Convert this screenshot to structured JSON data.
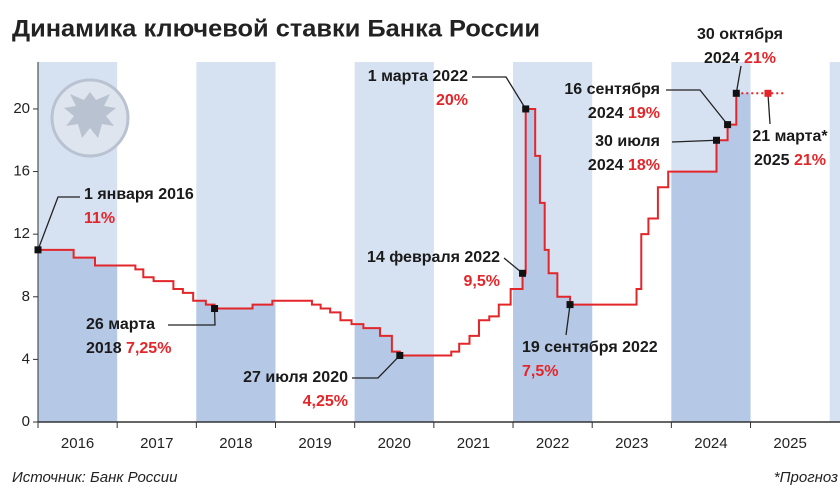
{
  "chart_data": {
    "type": "line",
    "title": "Динамика ключевой ставки Банка России",
    "source": "Источник: Банк России",
    "note": "*Прогноз",
    "xlim": [
      2016,
      2026.13
    ],
    "xticks": [
      2016,
      2017,
      2018,
      2019,
      2020,
      2021,
      2022,
      2023,
      2024,
      2025
    ],
    "ylim": [
      0,
      23
    ],
    "yticks": [
      0,
      4,
      8,
      12,
      16,
      20
    ],
    "series": [
      {
        "color": "#e3262a",
        "x": [
          2016.0,
          2016.45,
          2016.72,
          2017.23,
          2017.33,
          2017.46,
          2017.71,
          2017.83,
          2017.96,
          2018.12,
          2018.23,
          2018.71,
          2018.96,
          2019.46,
          2019.57,
          2019.69,
          2019.82,
          2019.96,
          2020.11,
          2020.32,
          2020.47,
          2020.57,
          2021.22,
          2021.32,
          2021.45,
          2021.57,
          2021.7,
          2021.82,
          2021.97,
          2022.12,
          2022.16,
          2022.28,
          2022.34,
          2022.4,
          2022.45,
          2022.56,
          2022.72,
          2023.56,
          2023.62,
          2023.71,
          2023.83,
          2023.96,
          2024.57,
          2024.71,
          2024.82
        ],
        "values": [
          11,
          10.5,
          10,
          9.75,
          9.25,
          9,
          8.5,
          8.25,
          7.75,
          7.5,
          7.25,
          7.5,
          7.75,
          7.5,
          7.25,
          7,
          6.5,
          6.25,
          6,
          5.5,
          4.5,
          4.25,
          4.5,
          5,
          5.5,
          6.5,
          6.75,
          7.5,
          8.5,
          9.5,
          20,
          17,
          14,
          11,
          9.5,
          8,
          7.5,
          8.5,
          12,
          13,
          15,
          16,
          18,
          19,
          21
        ],
        "labels": [
          [
            "1 января 2016"
          ],
          null,
          null,
          null,
          null,
          null,
          null,
          null,
          null,
          null,
          [
            "26 марта",
            "2018"
          ],
          null,
          null,
          null,
          null,
          null,
          null,
          null,
          null,
          null,
          null,
          [
            "27 июля 2020"
          ],
          null,
          null,
          null,
          null,
          null,
          null,
          null,
          [
            "14 февраля 2022"
          ],
          [
            "1 марта 2022"
          ],
          null,
          null,
          null,
          null,
          null,
          [
            "19 сентября 2022"
          ],
          null,
          null,
          null,
          null,
          null,
          [
            "30 июля",
            "2024"
          ],
          [
            "16 сентября",
            "2024"
          ],
          [
            "30 октября",
            "2024"
          ]
        ],
        "value_labels": [
          "11%",
          null,
          null,
          null,
          null,
          null,
          null,
          null,
          null,
          null,
          "7,25%",
          null,
          null,
          null,
          null,
          null,
          null,
          null,
          null,
          null,
          null,
          "4,25%",
          null,
          null,
          null,
          null,
          null,
          null,
          null,
          "9,5%",
          "20%",
          null,
          null,
          null,
          null,
          null,
          "7,5%",
          null,
          null,
          null,
          null,
          null,
          "18%",
          "19%",
          "21%"
        ]
      },
      {
        "color": "#e3262a",
        "dashed": true,
        "x": [
          2025.22
        ],
        "values": [
          21
        ],
        "labels": [
          [
            "21 марта*",
            "2025"
          ]
        ],
        "value_labels": [
          "21%"
        ]
      }
    ]
  }
}
